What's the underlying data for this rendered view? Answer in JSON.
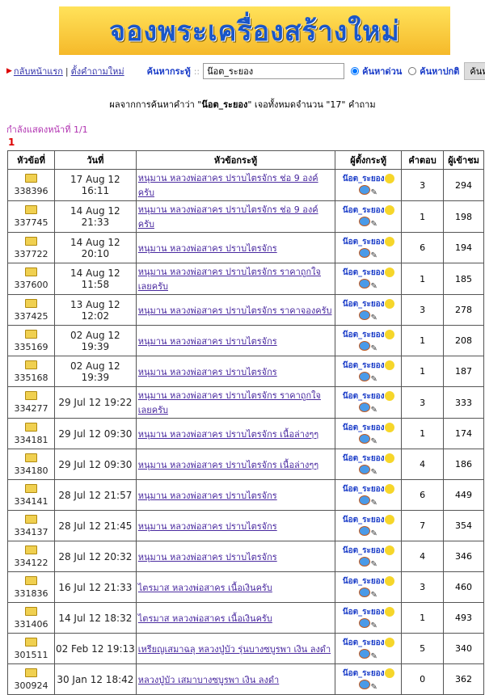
{
  "banner": {
    "text": "จองพระเครื่องสร้างใหม่"
  },
  "nav": {
    "home": "กลับหน้าแรก",
    "new_question": "ตั้งคำถามใหม่",
    "search_label": "ค้นหากระทู้",
    "search_value": "น๊อต_ระยอง",
    "radio_fast": "ค้นหาด่วน",
    "radio_normal": "ค้นหาปกติ",
    "search_button": "ค้นหา",
    "fast_selected": true
  },
  "result": {
    "prefix": "ผลจากการค้นหาคำว่า \"",
    "keyword": "น๊อต_ระยอง",
    "middle": "\" เจอทั้งหมดจำนวน \"",
    "count": "17",
    "suffix": "\" คำถาม"
  },
  "paging": {
    "info": "กำลังแสดงหน้าที่ 1/1",
    "current": "1"
  },
  "table": {
    "headers": [
      "หัวข้อที่",
      "วันที่",
      "หัวข้อกระทู้",
      "ผู้ตั้งกระทู้",
      "คำตอบ",
      "ผู้เข้าชม"
    ],
    "rows": [
      {
        "id": "338396",
        "date": "17 Aug 12 16:11",
        "title": "หนุมาน หลวงพ่อสาคร ปราบไตรจักร ช่อ 9 องค์ครับ",
        "user": "น๊อต_ระยอง",
        "replies": "3",
        "views": "294"
      },
      {
        "id": "337745",
        "date": "14 Aug 12 21:33",
        "title": "หนุมาน หลวงพ่อสาคร ปราบไตรจักร ช่อ 9 องค์ครับ",
        "user": "น๊อต_ระยอง",
        "replies": "1",
        "views": "198"
      },
      {
        "id": "337722",
        "date": "14 Aug 12 20:10",
        "title": "หนุมาน หลวงพ่อสาคร ปราบไตรจักร",
        "user": "น๊อต_ระยอง",
        "replies": "6",
        "views": "194"
      },
      {
        "id": "337600",
        "date": "14 Aug 12 11:58",
        "title": "หนุมาน หลวงพ่อสาคร ปราบไตรจักร ราคาถูกใจเลยครับ",
        "user": "น๊อต_ระยอง",
        "replies": "1",
        "views": "185"
      },
      {
        "id": "337425",
        "date": "13 Aug 12 12:02",
        "title": "หนุมาน หลวงพ่อสาคร ปราบไตรจักร ราคาจองครับ",
        "user": "น๊อต_ระยอง",
        "replies": "3",
        "views": "278"
      },
      {
        "id": "335169",
        "date": "02 Aug 12 19:39",
        "title": "หนุมาน หลวงพ่อสาคร ปราบไตรจักร",
        "user": "น๊อต_ระยอง",
        "replies": "1",
        "views": "208"
      },
      {
        "id": "335168",
        "date": "02 Aug 12 19:39",
        "title": "หนุมาน หลวงพ่อสาคร ปราบไตรจักร",
        "user": "น๊อต_ระยอง",
        "replies": "1",
        "views": "187"
      },
      {
        "id": "334277",
        "date": "29 Jul 12 19:22",
        "title": "หนุมาน หลวงพ่อสาคร ปราบไตรจักร ราคาถูกใจเลยครับ",
        "user": "น๊อต_ระยอง",
        "replies": "3",
        "views": "333"
      },
      {
        "id": "334181",
        "date": "29 Jul 12 09:30",
        "title": "หนุมาน หลวงพ่อสาคร ปราบไตรจักร เนื้อล่างๆๆ",
        "user": "น๊อต_ระยอง",
        "replies": "1",
        "views": "174"
      },
      {
        "id": "334180",
        "date": "29 Jul 12 09:30",
        "title": "หนุมาน หลวงพ่อสาคร ปราบไตรจักร เนื้อล่างๆๆ",
        "user": "น๊อต_ระยอง",
        "replies": "4",
        "views": "186"
      },
      {
        "id": "334141",
        "date": "28 Jul 12 21:57",
        "title": "หนุมาน หลวงพ่อสาคร ปราบไตรจักร",
        "user": "น๊อต_ระยอง",
        "replies": "6",
        "views": "449"
      },
      {
        "id": "334137",
        "date": "28 Jul 12 21:45",
        "title": "หนุมาน หลวงพ่อสาคร ปราบไตรจักร",
        "user": "น๊อต_ระยอง",
        "replies": "7",
        "views": "354"
      },
      {
        "id": "334122",
        "date": "28 Jul 12 20:32",
        "title": "หนุมาน หลวงพ่อสาคร ปราบไตรจักร",
        "user": "น๊อต_ระยอง",
        "replies": "4",
        "views": "346"
      },
      {
        "id": "331836",
        "date": "16 Jul 12 21:33",
        "title": "ไตรมาส หลวงพ่อสาคร เนื้อเงินครับ",
        "user": "น๊อต_ระยอง",
        "replies": "3",
        "views": "460"
      },
      {
        "id": "331406",
        "date": "14 Jul 12 18:32",
        "title": "ไตรมาส หลวงพ่อสาคร เนื้อเงินครับ",
        "user": "น๊อต_ระยอง",
        "replies": "1",
        "views": "493"
      },
      {
        "id": "301511",
        "date": "02 Feb 12 19:13",
        "title": "เหรียญเสมาฉลุ หลวงปู่บัว รุ่นบางซบูรพา เงิน ลงดำ",
        "user": "น๊อต_ระยอง",
        "replies": "5",
        "views": "340"
      },
      {
        "id": "300924",
        "date": "30 Jan 12 18:42",
        "title": "หลวงปู่บัว เสมาบางซบูรพา เงิน ลงดำ",
        "user": "น๊อต_ระยอง",
        "replies": "0",
        "views": "362"
      }
    ]
  }
}
